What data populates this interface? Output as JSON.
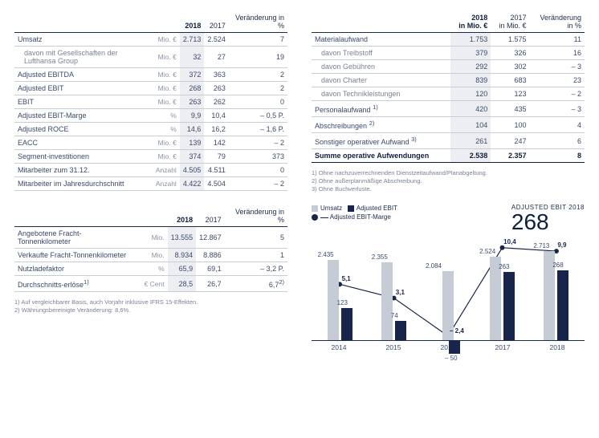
{
  "colors": {
    "bar_light": "#c6ccd6",
    "bar_dark": "#18254a",
    "text": "#1a2b4a",
    "hl": "#eceef2"
  },
  "t1": {
    "headers": [
      "",
      "",
      "2018",
      "2017",
      "Veränderung in %"
    ],
    "rows": [
      {
        "label": "Umsatz",
        "unit": "Mio. €",
        "v18": "2.713",
        "v17": "2.524",
        "chg": "7"
      },
      {
        "label": "davon mit Gesellschaften der Lufthansa Group",
        "unit": "Mio. €",
        "v18": "32",
        "v17": "27",
        "chg": "19",
        "sub": true
      },
      {
        "label": "Adjusted EBITDA",
        "unit": "Mio. €",
        "v18": "372",
        "v17": "363",
        "chg": "2"
      },
      {
        "label": "Adjusted EBIT",
        "unit": "Mio. €",
        "v18": "268",
        "v17": "263",
        "chg": "2"
      },
      {
        "label": "EBIT",
        "unit": "Mio. €",
        "v18": "263",
        "v17": "262",
        "chg": "0"
      },
      {
        "label": "Adjusted EBIT-Marge",
        "unit": "%",
        "v18": "9,9",
        "v17": "10,4",
        "chg": "– 0,5 P."
      },
      {
        "label": "Adjusted ROCE",
        "unit": "%",
        "v18": "14,6",
        "v17": "16,2",
        "chg": "– 1,6 P."
      },
      {
        "label": "EACC",
        "unit": "Mio. €",
        "v18": "139",
        "v17": "142",
        "chg": "– 2"
      },
      {
        "label": "Segment-investitionen",
        "unit": "Mio. €",
        "v18": "374",
        "v17": "79",
        "chg": "373"
      },
      {
        "label": "Mitarbeiter zum 31.12.",
        "unit": "Anzahl",
        "v18": "4.505",
        "v17": "4.511",
        "chg": "0"
      },
      {
        "label": "Mitarbeiter im Jahresdurchschnitt",
        "unit": "Anzahl",
        "v18": "4.422",
        "v17": "4.504",
        "chg": "– 2"
      }
    ]
  },
  "t2": {
    "headers": [
      "",
      "",
      "2018",
      "2017",
      "Veränderung in %"
    ],
    "rows": [
      {
        "label": "Angebotene Fracht-Tonnenkilometer",
        "unit": "Mio.",
        "v18": "13.555",
        "v17": "12.867",
        "chg": "5"
      },
      {
        "label": "Verkaufte Fracht-Tonnenkilometer",
        "unit": "Mio.",
        "v18": "8.934",
        "v17": "8.886",
        "chg": "1"
      },
      {
        "label": "Nutzladefaktor",
        "unit": "%",
        "v18": "65,9",
        "v17": "69,1",
        "chg": "– 3,2 P."
      },
      {
        "label": "Durchschnitts-erlöse<sup>1)</sup>",
        "unit": "€ Cent",
        "v18": "28,5",
        "v17": "26,7",
        "chg": "6,7<sup>2)</sup>"
      }
    ],
    "footnotes": [
      "1) Auf vergleichbarer Basis, auch Vorjahr inklusive IFRS 15-Effekten.",
      "2) Währungsbereinigte Veränderung: 8,6%."
    ]
  },
  "t3": {
    "headers": [
      "",
      "2018 in Mio. €",
      "2017 in Mio. €",
      "Veränderung in %"
    ],
    "rows": [
      {
        "label": "Materialaufwand",
        "v18": "1.753",
        "v17": "1.575",
        "chg": "11"
      },
      {
        "label": "davon Treibstoff",
        "v18": "379",
        "v17": "326",
        "chg": "16",
        "sub": true
      },
      {
        "label": "davon Gebühren",
        "v18": "292",
        "v17": "302",
        "chg": "– 3",
        "sub": true
      },
      {
        "label": "davon Charter",
        "v18": "839",
        "v17": "683",
        "chg": "23",
        "sub": true
      },
      {
        "label": "davon Technikleistungen",
        "v18": "120",
        "v17": "123",
        "chg": "– 2",
        "sub": true
      },
      {
        "label": "Personalaufwand <sup>1)</sup>",
        "v18": "420",
        "v17": "435",
        "chg": "– 3"
      },
      {
        "label": "Abschreibungen <sup>2)</sup>",
        "v18": "104",
        "v17": "100",
        "chg": "4"
      },
      {
        "label": "Sonstiger operativer Aufwand <sup>3)</sup>",
        "v18": "261",
        "v17": "247",
        "chg": "6"
      }
    ],
    "sum": {
      "label": "Summe operative Aufwendungen",
      "v18": "2.538",
      "v17": "2.357",
      "chg": "8"
    },
    "footnotes": [
      "1) Ohne nachzuverrechnenden Dienstzeitaufwand/Planabgeltung.",
      "2) Ohne außerplanmäßige Abschreibung.",
      "3) Ohne Buchverluste."
    ]
  },
  "chart": {
    "legend": {
      "umsatz": "Umsatz",
      "ebit": "Adjusted EBIT",
      "marge": "Adjusted EBIT-Marge"
    },
    "title_small": "ADJUSTED EBIT 2018",
    "title_big": "268",
    "max_rev": 3000,
    "ebit_scale": 320,
    "years": [
      {
        "year": "2014",
        "rev": 2435,
        "rev_label": "2.435",
        "ebit": 123,
        "ebit_label": "123",
        "marge": 5.1,
        "marge_label": "5,1"
      },
      {
        "year": "2015",
        "rev": 2355,
        "rev_label": "2.355",
        "ebit": 74,
        "ebit_label": "74",
        "marge": 3.1,
        "marge_label": "3,1"
      },
      {
        "year": "2016",
        "rev": 2084,
        "rev_label": "2.084",
        "ebit": -50,
        "ebit_label": "– 50",
        "marge": -2.4,
        "marge_label": "– 2,4"
      },
      {
        "year": "2017",
        "rev": 2524,
        "rev_label": "2.524",
        "ebit": 263,
        "ebit_label": "263",
        "marge": 10.4,
        "marge_label": "10,4"
      },
      {
        "year": "2018",
        "rev": 2713,
        "rev_label": "2.713",
        "ebit": 268,
        "ebit_label": "268",
        "marge": 9.9,
        "marge_label": "9,9"
      }
    ]
  }
}
